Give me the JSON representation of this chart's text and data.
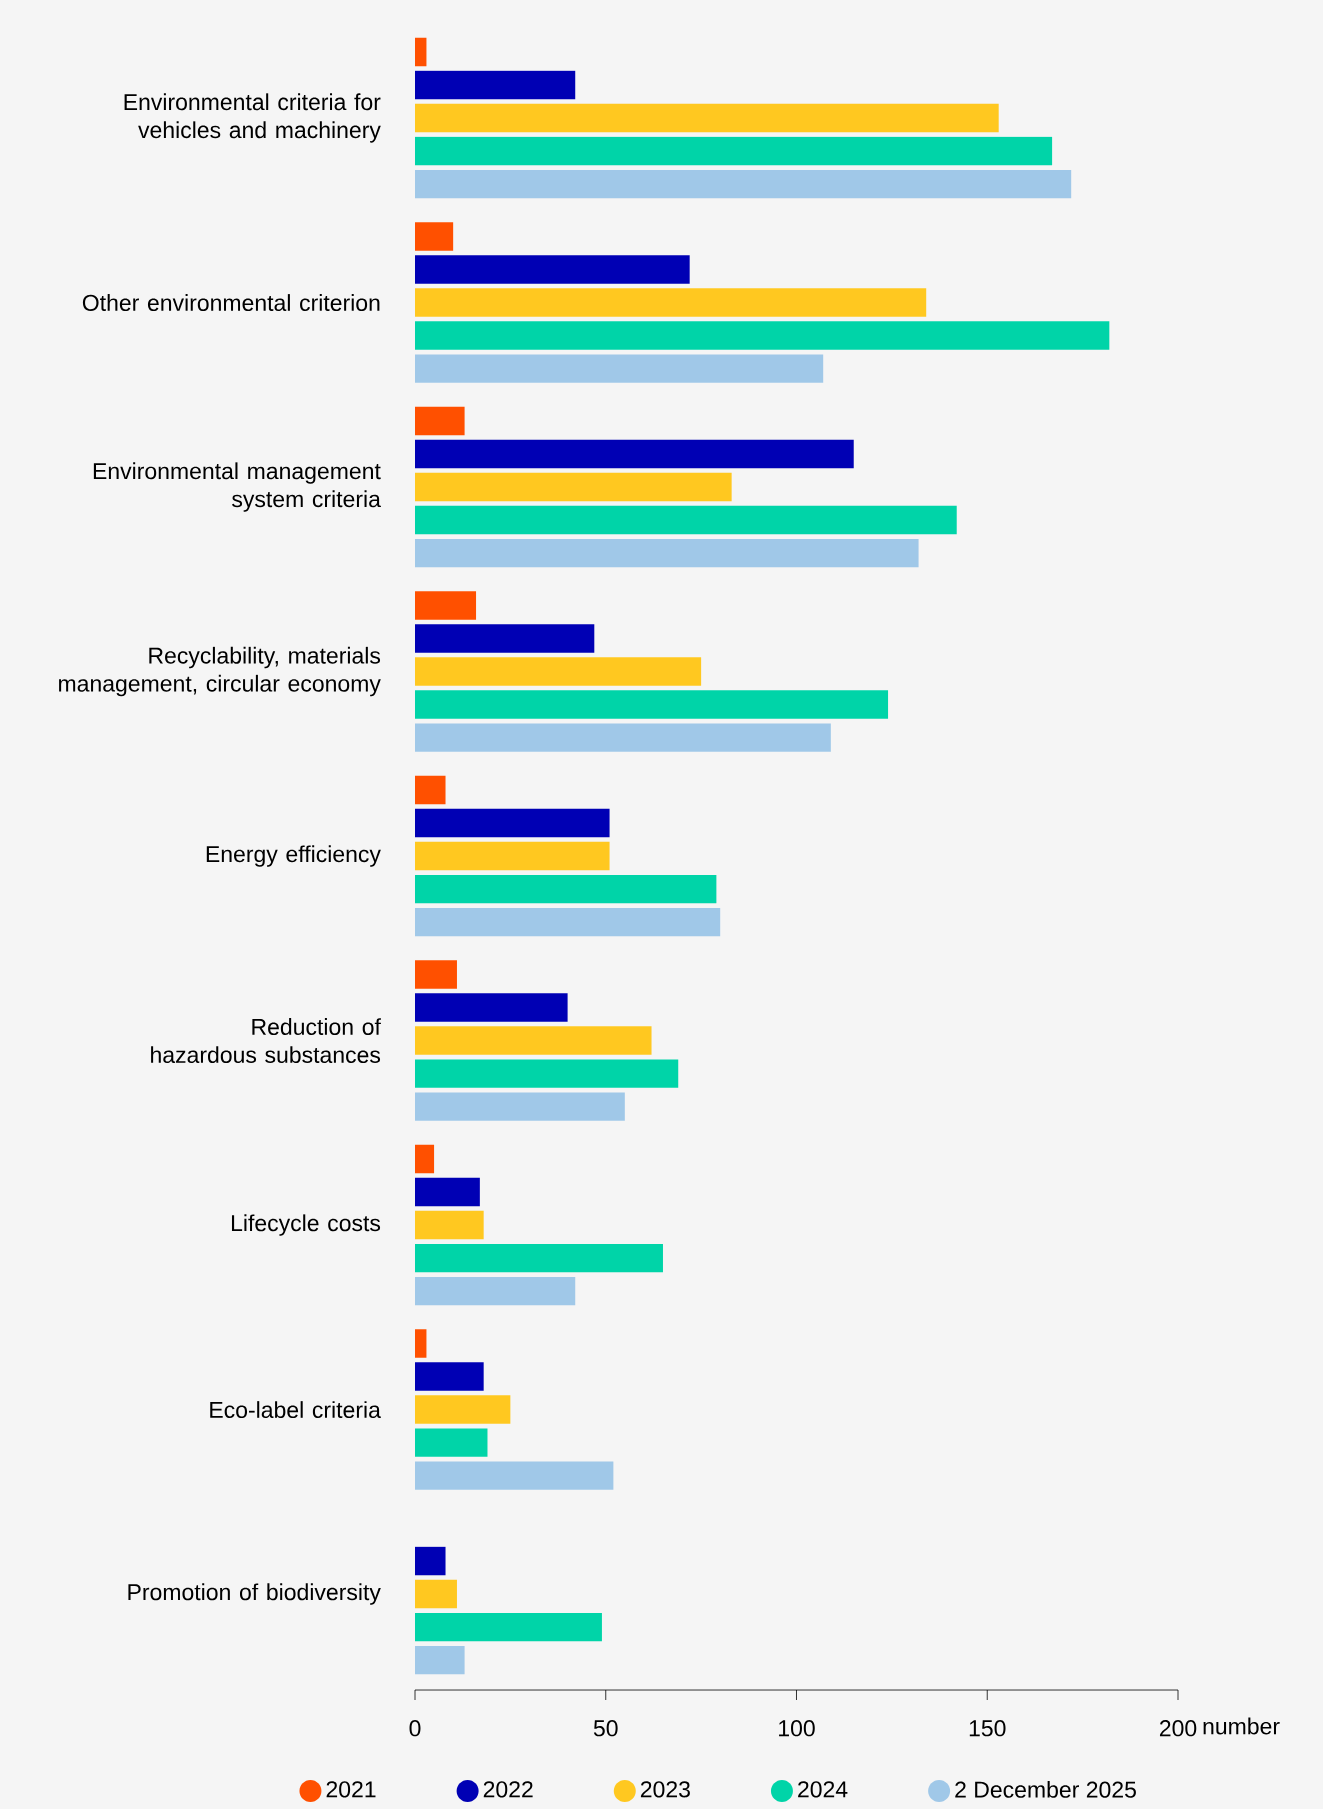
{
  "chart_data": {
    "type": "bar",
    "orientation": "horizontal",
    "xlabel": "number",
    "legend": "bottom",
    "grid": false,
    "categories": [
      "Environmental criteria for vehicles and machinery",
      "Other environmental criterion",
      "Environmental management system criteria",
      "Recyclability, materials management, circular economy",
      "Energy efficiency",
      "Reduction of hazardous substances",
      "Lifecycle costs",
      "Eco-label criteria",
      "Promotion of biodiversity"
    ],
    "xlim": [
      0,
      200
    ],
    "xticks": [
      0,
      50,
      100,
      150,
      200
    ],
    "series": [
      {
        "name": "2021",
        "color": "#ff5000",
        "values": [
          3,
          10,
          13,
          16,
          8,
          11,
          5,
          3,
          null
        ]
      },
      {
        "name": "2022",
        "color": "#0000b4",
        "values": [
          42,
          72,
          115,
          47,
          51,
          40,
          17,
          18,
          8
        ]
      },
      {
        "name": "2023",
        "color": "#ffc820",
        "values": [
          153,
          134,
          83,
          75,
          51,
          62,
          18,
          25,
          11
        ]
      },
      {
        "name": "2024",
        "color": "#00d4a8",
        "values": [
          167,
          182,
          142,
          124,
          79,
          69,
          65,
          19,
          49
        ]
      },
      {
        "name": "2 December 2025",
        "color": "#a0c8e8",
        "values": [
          172,
          107,
          132,
          109,
          80,
          55,
          42,
          52,
          13
        ]
      }
    ]
  }
}
